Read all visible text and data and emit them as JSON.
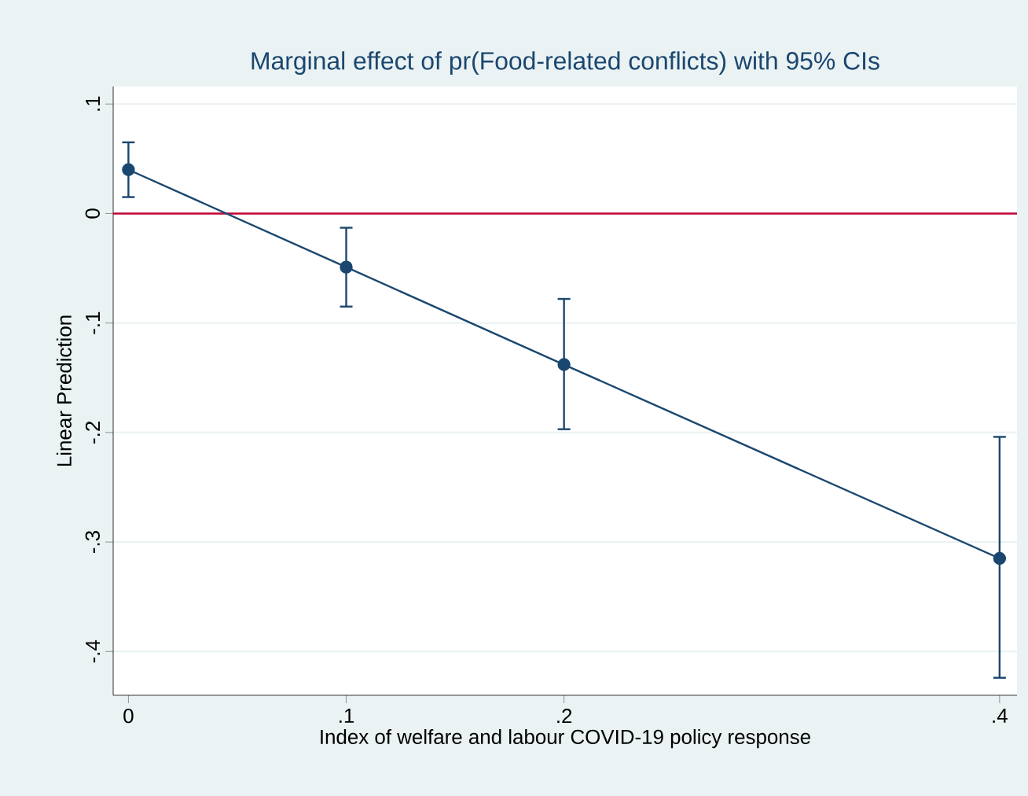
{
  "chart_data": {
    "type": "line",
    "title": "Marginal effect of pr(Food-related conflicts) with 95% CIs",
    "xlabel": "Index of welfare and labour COVID-19 policy response",
    "ylabel": "Linear Prediction",
    "x": [
      0,
      0.1,
      0.2,
      0.4
    ],
    "series": [
      {
        "color": "#1a476f",
        "values": [
          0.04,
          -0.049,
          -0.138,
          -0.315
        ],
        "errors": [
          [
            0.015,
            0.065
          ],
          [
            -0.085,
            -0.013
          ],
          [
            -0.197,
            -0.078
          ],
          [
            -0.424,
            -0.204
          ]
        ]
      }
    ],
    "xlim": [
      -0.007,
      0.408
    ],
    "ylim": [
      -0.44,
      0.116
    ],
    "xticks": [
      0,
      {
        "value": 0.1,
        "label": ".1"
      },
      {
        "value": 0.2,
        "label": ".2"
      },
      {
        "value": 0.4,
        "label": ".4"
      }
    ],
    "yticks": [
      {
        "value": 0.1,
        "label": ".1"
      },
      0,
      {
        "value": -0.1,
        "label": "-.1"
      },
      {
        "value": -0.2,
        "label": "-.2"
      },
      {
        "value": -0.3,
        "label": "-.3"
      },
      {
        "value": -0.4,
        "label": "-.4"
      }
    ],
    "ref_lines": [
      {
        "axis": "y",
        "value": 0,
        "color": "#c10534"
      }
    ],
    "grid": "y",
    "marker": "circle",
    "line_style": "solid"
  }
}
